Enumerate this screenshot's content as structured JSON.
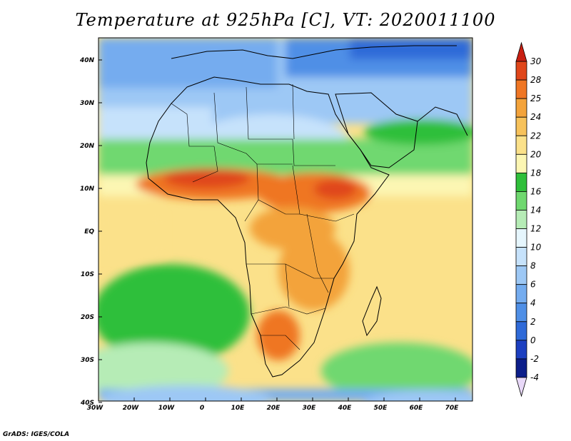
{
  "title": "Temperature at 925hPa [C], VT: 2020011100",
  "credit": "GrADS: IGES/COLA",
  "lon_ticks": [
    "30W",
    "20W",
    "10W",
    "0",
    "10E",
    "20E",
    "30E",
    "40E",
    "50E",
    "60E",
    "70E"
  ],
  "lat_ticks": [
    "40N",
    "30N",
    "20N",
    "10N",
    "EQ",
    "10S",
    "20S",
    "30S",
    "40S"
  ],
  "colorbar": {
    "levels": [
      "-4",
      "-2",
      "0",
      "2",
      "4",
      "6",
      "8",
      "10",
      "12",
      "14",
      "16",
      "18",
      "20",
      "22",
      "24",
      "25",
      "28",
      "30"
    ],
    "colors": [
      "#e8d8f8",
      "#0c1e8a",
      "#1c3fc0",
      "#2f6ad8",
      "#4f8fe6",
      "#74acef",
      "#9dc8f5",
      "#c6e2fb",
      "#e6f6fd",
      "#b6ecb6",
      "#6fd86f",
      "#2fbf3a",
      "#fcf6b3",
      "#fbe18a",
      "#f7c25b",
      "#f3a33b",
      "#ef7624",
      "#e0461a",
      "#c81f12"
    ]
  },
  "map": {
    "lon_range": [
      -30,
      75
    ],
    "lat_range": [
      -40,
      45
    ],
    "background_color": "#fbe18a"
  }
}
